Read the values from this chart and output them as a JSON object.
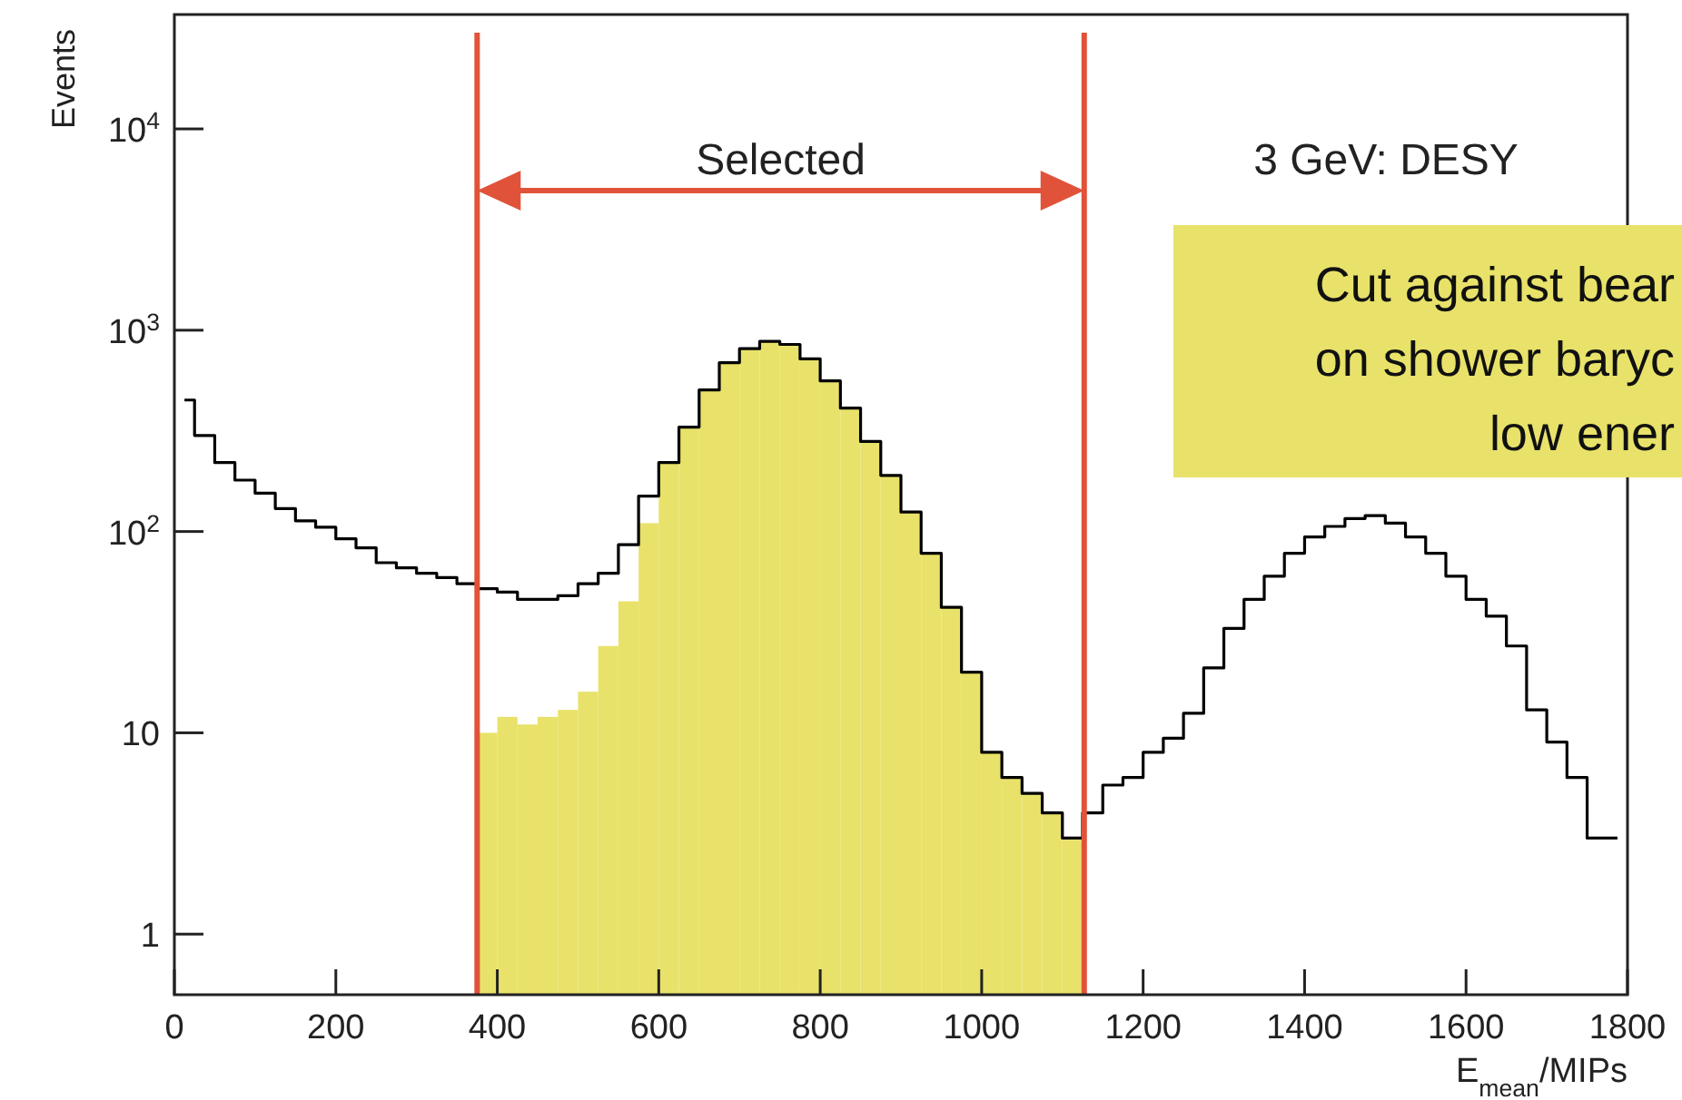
{
  "chart_data": {
    "type": "histogram",
    "xlabel": "E$_{mean}$/MIPs",
    "ylabel": "Events",
    "log": "y",
    "xlim": [
      0,
      1800
    ],
    "xticks": [
      0,
      200,
      400,
      600,
      800,
      1000,
      1200,
      1400,
      1600,
      1800
    ],
    "ylim": [
      0.5,
      37000
    ],
    "yticks": [
      1,
      10,
      {
        "value": 100,
        "label": "10$^{2}$"
      },
      {
        "value": 1000,
        "label": "10$^{3}$"
      },
      {
        "value": 10000,
        "label": "10$^{4}$"
      }
    ],
    "bins": [
      375,
      400,
      425,
      450,
      475,
      500,
      525,
      550,
      575,
      600,
      625,
      650,
      675,
      700,
      725,
      750,
      775,
      800,
      825,
      850,
      875,
      900,
      925,
      950,
      975,
      1000,
      1025,
      1050,
      1075,
      1100,
      1125
    ],
    "series": [
      {
        "color": "#e8e26a",
        "values": [
          10,
          12,
          11,
          12,
          13,
          16,
          27,
          45,
          110,
          220,
          330,
          505,
          690,
          810,
          880,
          850,
          720,
          560,
          410,
          280,
          190,
          125,
          78,
          42,
          20,
          8,
          6,
          5,
          4,
          3
        ]
      },
      {
        "type": "step",
        "color": "#000000",
        "x": [
          12.5,
          37.5,
          62.5,
          87.5,
          112.5,
          137.5,
          162.5,
          187.5,
          212.5,
          237.5,
          262.5,
          287.5,
          312.5,
          337.5,
          362.5,
          387.5,
          412.5,
          437.5,
          462.5,
          487.5,
          512.5,
          537.5,
          562.5,
          587.5,
          612.5,
          637.5,
          662.5,
          687.5,
          712.5,
          737.5,
          762.5,
          787.5,
          812.5,
          837.5,
          862.5,
          887.5,
          912.5,
          937.5,
          962.5,
          987.5,
          1012.5,
          1037.5,
          1062.5,
          1087.5,
          1112.5,
          1137.5,
          1162.5,
          1187.5,
          1212.5,
          1237.5,
          1262.5,
          1287.5,
          1312.5,
          1337.5,
          1362.5,
          1387.5,
          1412.5,
          1437.5,
          1462.5,
          1487.5,
          1512.5,
          1537.5,
          1562.5,
          1587.5,
          1612.5,
          1637.5,
          1662.5,
          1687.5,
          1712.5,
          1737.5,
          1762.5,
          1787.5
        ],
        "values": [
          450,
          300,
          220,
          180,
          155,
          130,
          113,
          105,
          92,
          83,
          70,
          66,
          62,
          59,
          55,
          52,
          50,
          46,
          46,
          48,
          55,
          62,
          86,
          150,
          220,
          330,
          505,
          690,
          810,
          880,
          850,
          720,
          560,
          410,
          280,
          190,
          125,
          78,
          42,
          20,
          8,
          6,
          5,
          4,
          3,
          4,
          5.5,
          6,
          8,
          9.4,
          12.5,
          21,
          33,
          46,
          60,
          78,
          94,
          106,
          116,
          120,
          110,
          94,
          78,
          60,
          46,
          38,
          27,
          13,
          9,
          6,
          3,
          3
        ]
      }
    ],
    "ref_lines": [
      {
        "axis": "x",
        "value": 375,
        "color": "#e0533a"
      },
      {
        "axis": "x",
        "value": 1127,
        "color": "#e0533a"
      }
    ],
    "annotations": [
      "Selected",
      "3 GeV: DESY",
      "Cut against bear\non shower baryc\nlow ener"
    ]
  }
}
